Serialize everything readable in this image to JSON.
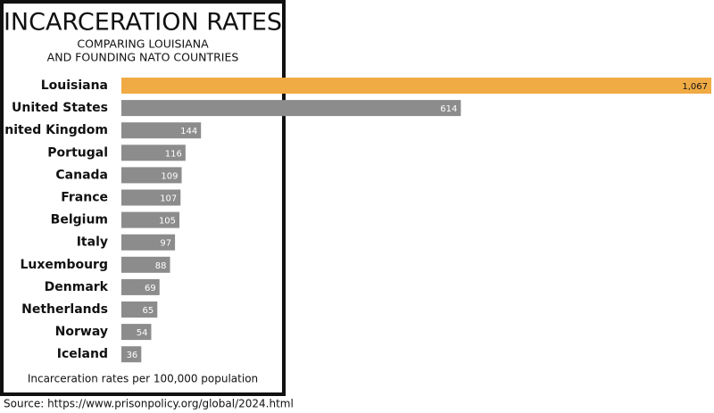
{
  "chart_data": {
    "type": "hbar",
    "title": "INCARCERATION RATES",
    "subtitle": [
      "COMPARING LOUISIANA",
      "AND FOUNDING NATO COUNTRIES"
    ],
    "categories": [
      "Louisiana",
      "United States",
      "United Kingdom",
      "Portugal",
      "Canada",
      "France",
      "Belgium",
      "Italy",
      "Luxembourg",
      "Denmark",
      "Netherlands",
      "Norway",
      "Iceland"
    ],
    "values": [
      1067,
      614,
      144,
      116,
      109,
      107,
      105,
      97,
      88,
      69,
      65,
      54,
      36
    ],
    "value_labels": [
      "1,067",
      "614",
      "144",
      "116",
      "109",
      "107",
      "105",
      "97",
      "88",
      "69",
      "65",
      "54",
      "36"
    ],
    "colors": [
      "#f0ab45",
      "#8c8c8c",
      "#8c8c8c",
      "#8c8c8c",
      "#8c8c8c",
      "#8c8c8c",
      "#8c8c8c",
      "#8c8c8c",
      "#8c8c8c",
      "#8c8c8c",
      "#8c8c8c",
      "#8c8c8c",
      "#8c8c8c"
    ],
    "note": "Incarceration rates per 100,000 population",
    "source": "Source: https://www.prisonpolicy.org/global/2024.html"
  }
}
